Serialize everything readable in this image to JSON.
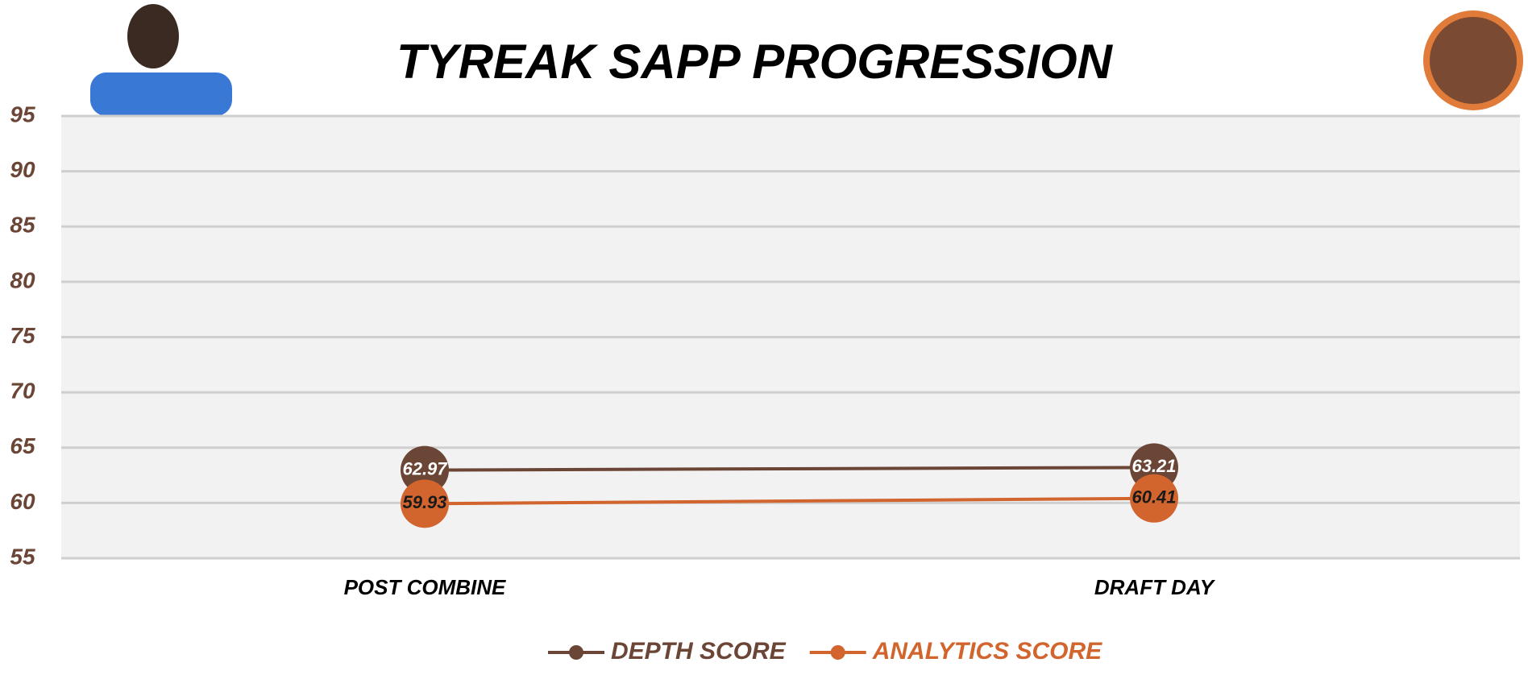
{
  "chart_data": {
    "type": "line",
    "title": "TYREAK SAPP PROGRESSION",
    "categories": [
      "POST COMBINE",
      "DRAFT DAY"
    ],
    "series": [
      {
        "name": "DEPTH SCORE",
        "color": "#6b4535",
        "values": [
          62.97,
          63.21
        ]
      },
      {
        "name": "ANALYTICS SCORE",
        "color": "#d2642e",
        "values": [
          59.93,
          60.41
        ]
      }
    ],
    "ylim": [
      55,
      95
    ],
    "yticks": [
      55,
      60,
      65,
      70,
      75,
      80,
      85,
      90,
      95
    ],
    "grid": true
  }
}
